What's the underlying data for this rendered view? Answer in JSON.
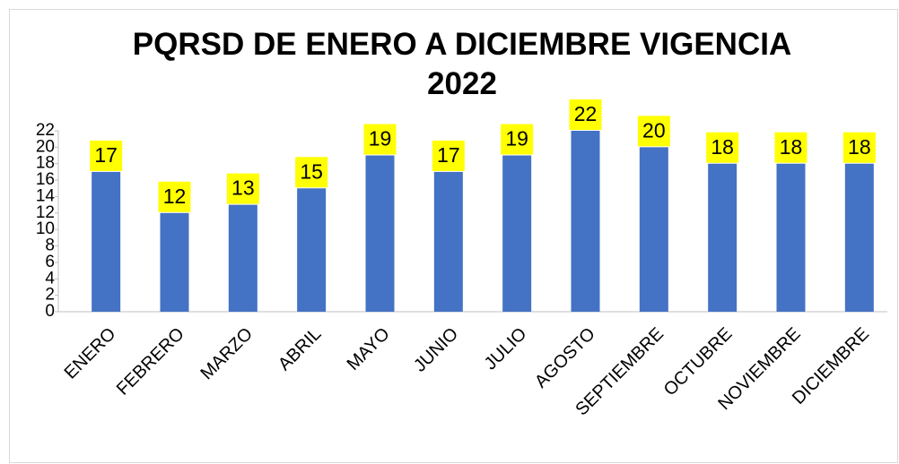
{
  "chart_data": {
    "type": "bar",
    "title": "PQRSD DE ENERO A DICIEMBRE VIGENCIA 2022",
    "categories": [
      "ENERO",
      "FEBRERO",
      "MARZO",
      "ABRIL",
      "MAYO",
      "JUNIO",
      "JULIO",
      "AGOSTO",
      "SEPTIEMBRE",
      "OCTUBRE",
      "NOVIEMBRE",
      "DICIEMBRE"
    ],
    "values": [
      17,
      12,
      13,
      15,
      19,
      17,
      19,
      22,
      20,
      18,
      18,
      18
    ],
    "color": "#4472c4",
    "label_color": "#ffff00",
    "ylim": [
      0,
      22
    ],
    "yticks": [
      0,
      2,
      4,
      6,
      8,
      10,
      12,
      14,
      16,
      18,
      20,
      22
    ],
    "grid": false
  }
}
